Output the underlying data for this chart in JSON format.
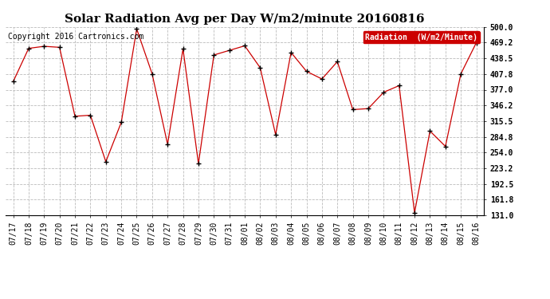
{
  "title": "Solar Radiation Avg per Day W/m2/minute 20160816",
  "copyright": "Copyright 2016 Cartronics.com",
  "legend_label": "Radiation  (W/m2/Minute)",
  "ylim": [
    131.0,
    500.0
  ],
  "yticks": [
    131.0,
    161.8,
    192.5,
    223.2,
    254.0,
    284.8,
    315.5,
    346.2,
    377.0,
    407.8,
    438.5,
    469.2,
    500.0
  ],
  "dates": [
    "07/17",
    "07/18",
    "07/19",
    "07/20",
    "07/21",
    "07/22",
    "07/23",
    "07/24",
    "07/25",
    "07/26",
    "07/27",
    "07/28",
    "07/29",
    "07/30",
    "07/31",
    "08/01",
    "08/02",
    "08/03",
    "08/04",
    "08/05",
    "08/06",
    "08/07",
    "08/08",
    "08/09",
    "08/10",
    "08/11",
    "08/12",
    "08/13",
    "08/14",
    "08/15",
    "08/16"
  ],
  "values": [
    393,
    458,
    462,
    460,
    325,
    327,
    236,
    313,
    496,
    408,
    270,
    457,
    232,
    445,
    454,
    463,
    420,
    289,
    450,
    413,
    398,
    432,
    338,
    340,
    372,
    385,
    136,
    296,
    266,
    408,
    469
  ],
  "line_color": "#cc0000",
  "marker": "+",
  "marker_color": "#000000",
  "marker_size": 5,
  "bg_color": "#ffffff",
  "plot_bg_color": "#ffffff",
  "grid_color": "#bbbbbb",
  "grid_style": "--",
  "title_fontsize": 11,
  "tick_fontsize": 7,
  "copyright_fontsize": 7,
  "legend_bg": "#cc0000",
  "legend_text_color": "#ffffff",
  "legend_fontsize": 7
}
